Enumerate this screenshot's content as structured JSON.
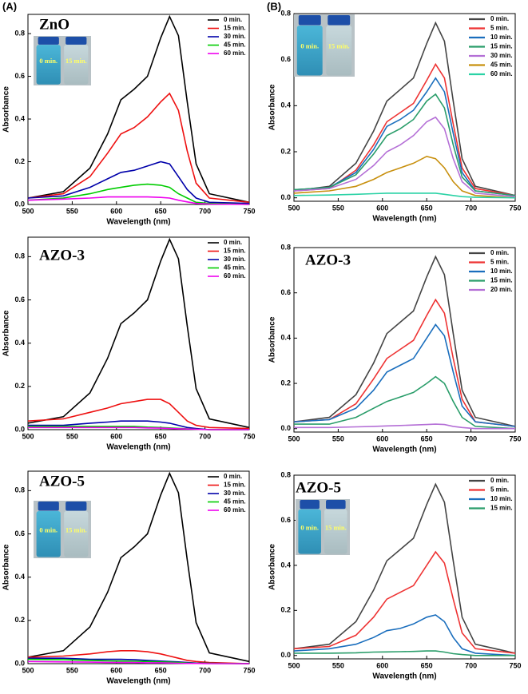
{
  "panel_labels": [
    "(A)",
    "(B)"
  ],
  "chart_data": [
    {
      "type": "line",
      "title": "ZnO",
      "x_label": "Wavelength (nm)",
      "y_label": "Absorbance",
      "inset_labels": [
        "0 min.",
        "15 min."
      ],
      "x": [
        500,
        540,
        570,
        590,
        605,
        620,
        635,
        650,
        660,
        670,
        680,
        690,
        705,
        750
      ],
      "xlim": [
        500,
        750
      ],
      "xticks": [
        500,
        550,
        600,
        650,
        700,
        750
      ],
      "ylim": [
        0,
        0.89
      ],
      "yticks": [
        {
          "value": 0,
          "label": "0.0"
        },
        0.2,
        0.4,
        0.6,
        0.8
      ],
      "series": [
        {
          "name": "0 min.",
          "color": "#000000",
          "values": [
            0.03,
            0.06,
            0.17,
            0.33,
            0.49,
            0.54,
            0.6,
            0.78,
            0.88,
            0.79,
            0.48,
            0.19,
            0.05,
            0.01
          ]
        },
        {
          "name": "15 min.",
          "color": "#ee1111",
          "values": [
            0.03,
            0.05,
            0.13,
            0.24,
            0.33,
            0.36,
            0.41,
            0.48,
            0.52,
            0.44,
            0.25,
            0.1,
            0.03,
            0.01
          ]
        },
        {
          "name": "30 min.",
          "color": "#0000aa",
          "values": [
            0.03,
            0.04,
            0.08,
            0.12,
            0.15,
            0.16,
            0.18,
            0.2,
            0.19,
            0.13,
            0.07,
            0.03,
            0.01,
            0.005
          ]
        },
        {
          "name": "45 min.",
          "color": "#00cc00",
          "values": [
            0.02,
            0.03,
            0.05,
            0.07,
            0.08,
            0.09,
            0.095,
            0.09,
            0.08,
            0.05,
            0.03,
            0.01,
            0.005,
            0
          ]
        },
        {
          "name": "60 min.",
          "color": "#ee00ee",
          "values": [
            0.02,
            0.025,
            0.03,
            0.035,
            0.035,
            0.035,
            0.035,
            0.033,
            0.03,
            0.02,
            0.012,
            0.005,
            0.002,
            0
          ]
        }
      ]
    },
    {
      "type": "line",
      "title": "ZnO",
      "x_label": "Wavelength (nm)",
      "y_label": "Absorbance",
      "inset_labels": [
        "0 min.",
        "15 min."
      ],
      "x": [
        500,
        540,
        570,
        590,
        605,
        620,
        635,
        650,
        660,
        670,
        680,
        690,
        705,
        750
      ],
      "xlim": [
        500,
        750
      ],
      "xticks": [
        500,
        550,
        600,
        650,
        700,
        750
      ],
      "ylim": [
        -0.015,
        0.8
      ],
      "yticks": [
        {
          "value": 0,
          "label": "0.0"
        },
        0.2,
        0.4,
        0.6,
        0.8
      ],
      "series": [
        {
          "name": "0 min.",
          "color": "#444444",
          "values": [
            0.03,
            0.05,
            0.15,
            0.29,
            0.42,
            0.47,
            0.52,
            0.67,
            0.76,
            0.68,
            0.42,
            0.17,
            0.05,
            0.01
          ]
        },
        {
          "name": "5 min.",
          "color": "#ee3333",
          "values": [
            0.03,
            0.04,
            0.12,
            0.23,
            0.33,
            0.37,
            0.41,
            0.51,
            0.58,
            0.52,
            0.32,
            0.13,
            0.04,
            0.01
          ]
        },
        {
          "name": "10 min.",
          "color": "#1a6ebd",
          "values": [
            0.035,
            0.045,
            0.11,
            0.21,
            0.31,
            0.34,
            0.38,
            0.46,
            0.52,
            0.46,
            0.28,
            0.11,
            0.03,
            0.01
          ]
        },
        {
          "name": "15 min.",
          "color": "#2a9d6a",
          "values": [
            0.035,
            0.045,
            0.1,
            0.19,
            0.27,
            0.3,
            0.34,
            0.42,
            0.45,
            0.39,
            0.23,
            0.09,
            0.03,
            0.01
          ]
        },
        {
          "name": "30 min.",
          "color": "#b46fd6",
          "values": [
            0.03,
            0.04,
            0.08,
            0.14,
            0.2,
            0.23,
            0.27,
            0.33,
            0.35,
            0.3,
            0.17,
            0.07,
            0.02,
            0.005
          ]
        },
        {
          "name": "45 min.",
          "color": "#c8900f",
          "values": [
            0.02,
            0.03,
            0.05,
            0.08,
            0.11,
            0.13,
            0.15,
            0.18,
            0.17,
            0.13,
            0.07,
            0.03,
            0.01,
            0
          ]
        },
        {
          "name": "60 min.",
          "color": "#2ad2a5",
          "values": [
            0.01,
            0.012,
            0.015,
            0.018,
            0.02,
            0.02,
            0.02,
            0.02,
            0.02,
            0.015,
            0.01,
            0.005,
            0.002,
            0
          ]
        }
      ]
    },
    {
      "type": "line",
      "title": "AZO-3",
      "x_label": "Wavelength (nm)",
      "y_label": "Absorbance",
      "x": [
        500,
        540,
        570,
        590,
        605,
        620,
        635,
        650,
        660,
        670,
        680,
        690,
        705,
        750
      ],
      "xlim": [
        500,
        750
      ],
      "xticks": [
        500,
        550,
        600,
        650,
        700,
        750
      ],
      "ylim": [
        0,
        0.89
      ],
      "yticks": [
        {
          "value": 0,
          "label": "0.0"
        },
        0.2,
        0.4,
        0.6,
        0.8
      ],
      "series": [
        {
          "name": "0 min.",
          "color": "#000000",
          "values": [
            0.03,
            0.06,
            0.17,
            0.33,
            0.49,
            0.54,
            0.6,
            0.78,
            0.88,
            0.79,
            0.48,
            0.19,
            0.05,
            0.01
          ]
        },
        {
          "name": "15 min.",
          "color": "#ee1111",
          "values": [
            0.04,
            0.05,
            0.08,
            0.1,
            0.12,
            0.13,
            0.14,
            0.14,
            0.12,
            0.08,
            0.04,
            0.02,
            0.01,
            0.005
          ]
        },
        {
          "name": "30 min.",
          "color": "#0000aa",
          "values": [
            0.02,
            0.02,
            0.03,
            0.035,
            0.04,
            0.04,
            0.04,
            0.035,
            0.03,
            0.02,
            0.01,
            0.005,
            0,
            0
          ]
        },
        {
          "name": "45 min.",
          "color": "#00cc00",
          "values": [
            0.015,
            0.015,
            0.015,
            0.015,
            0.015,
            0.015,
            0.012,
            0.01,
            0.008,
            0.006,
            0.004,
            0.002,
            0,
            0
          ]
        },
        {
          "name": "60 min.",
          "color": "#ee00ee",
          "values": [
            0.01,
            0.01,
            0.01,
            0.01,
            0.01,
            0.01,
            0.008,
            0.007,
            0.006,
            0.004,
            0.003,
            0.002,
            0,
            0
          ]
        }
      ]
    },
    {
      "type": "line",
      "title": "AZO-3",
      "x_label": "Wavelength (nm)",
      "y_label": "Absorbance",
      "x": [
        500,
        540,
        570,
        590,
        605,
        620,
        635,
        650,
        660,
        670,
        680,
        690,
        705,
        750
      ],
      "xlim": [
        500,
        750
      ],
      "xticks": [
        500,
        550,
        600,
        650,
        700,
        750
      ],
      "ylim": [
        -0.015,
        0.8
      ],
      "yticks": [
        {
          "value": 0,
          "label": "0.0"
        },
        0.2,
        0.4,
        0.6,
        0.8
      ],
      "series": [
        {
          "name": "0 min.",
          "color": "#444444",
          "values": [
            0.03,
            0.05,
            0.15,
            0.29,
            0.42,
            0.47,
            0.52,
            0.67,
            0.76,
            0.68,
            0.42,
            0.17,
            0.05,
            0.01
          ]
        },
        {
          "name": "5 min.",
          "color": "#ee3333",
          "values": [
            0.03,
            0.04,
            0.11,
            0.22,
            0.31,
            0.35,
            0.39,
            0.5,
            0.57,
            0.51,
            0.31,
            0.13,
            0.03,
            0.01
          ]
        },
        {
          "name": "10 min.",
          "color": "#1a6ebd",
          "values": [
            0.03,
            0.04,
            0.09,
            0.17,
            0.25,
            0.28,
            0.31,
            0.4,
            0.46,
            0.41,
            0.25,
            0.1,
            0.03,
            0.01
          ]
        },
        {
          "name": "15 min.",
          "color": "#2a9d6a",
          "values": [
            0.02,
            0.02,
            0.05,
            0.09,
            0.12,
            0.14,
            0.16,
            0.2,
            0.23,
            0.2,
            0.12,
            0.05,
            0.01,
            0
          ]
        },
        {
          "name": "20 min.",
          "color": "#b46fd6",
          "values": [
            0.005,
            0.005,
            0.008,
            0.01,
            0.012,
            0.014,
            0.016,
            0.018,
            0.02,
            0.018,
            0.01,
            0.005,
            0,
            0
          ]
        }
      ]
    },
    {
      "type": "line",
      "title": "AZO-5",
      "x_label": "Wavelength (nm)",
      "y_label": "Absorbance",
      "inset_labels": [
        "0 min.",
        "15 min."
      ],
      "x": [
        500,
        540,
        570,
        590,
        605,
        620,
        635,
        650,
        660,
        670,
        680,
        690,
        705,
        750
      ],
      "xlim": [
        500,
        750
      ],
      "xticks": [
        500,
        550,
        600,
        650,
        700,
        750
      ],
      "ylim": [
        0,
        0.89
      ],
      "yticks": [
        {
          "value": 0,
          "label": "0.0"
        },
        0.2,
        0.4,
        0.6,
        0.8
      ],
      "series": [
        {
          "name": "0 min.",
          "color": "#000000",
          "values": [
            0.03,
            0.06,
            0.17,
            0.33,
            0.49,
            0.54,
            0.6,
            0.78,
            0.88,
            0.79,
            0.48,
            0.19,
            0.05,
            0.01
          ]
        },
        {
          "name": "15 min.",
          "color": "#ee1111",
          "values": [
            0.03,
            0.035,
            0.045,
            0.055,
            0.06,
            0.06,
            0.055,
            0.045,
            0.035,
            0.025,
            0.015,
            0.01,
            0.005,
            0
          ]
        },
        {
          "name": "30 min.",
          "color": "#0000aa",
          "values": [
            0.025,
            0.025,
            0.02,
            0.02,
            0.02,
            0.018,
            0.015,
            0.012,
            0.01,
            0.008,
            0.005,
            0.003,
            0.002,
            0
          ]
        },
        {
          "name": "45 min.",
          "color": "#00cc00",
          "values": [
            0.02,
            0.018,
            0.015,
            0.013,
            0.012,
            0.011,
            0.01,
            0.008,
            0.007,
            0.005,
            0.003,
            0.002,
            0.001,
            0
          ]
        },
        {
          "name": "60 min.",
          "color": "#ee00ee",
          "values": [
            0.01,
            0.008,
            0.007,
            0.006,
            0.005,
            0.005,
            0.004,
            0.004,
            0.003,
            0.002,
            0.001,
            0.001,
            0,
            0
          ]
        }
      ]
    },
    {
      "type": "line",
      "title": "AZO-5",
      "x_label": "Wavelength (nm)",
      "y_label": "Absorbance",
      "inset_labels": [
        "0 min.",
        "15 min."
      ],
      "x": [
        500,
        540,
        570,
        590,
        605,
        620,
        635,
        650,
        660,
        670,
        680,
        690,
        705,
        750
      ],
      "xlim": [
        500,
        750
      ],
      "xticks": [
        500,
        550,
        600,
        650,
        700,
        750
      ],
      "ylim": [
        -0.015,
        0.8
      ],
      "yticks": [
        {
          "value": 0,
          "label": "0.0"
        },
        0.2,
        0.4,
        0.6,
        0.8
      ],
      "series": [
        {
          "name": "0 min.",
          "color": "#444444",
          "values": [
            0.03,
            0.05,
            0.15,
            0.29,
            0.42,
            0.47,
            0.52,
            0.67,
            0.76,
            0.68,
            0.42,
            0.17,
            0.05,
            0.01
          ]
        },
        {
          "name": "5 min.",
          "color": "#ee3333",
          "values": [
            0.03,
            0.04,
            0.09,
            0.17,
            0.25,
            0.28,
            0.31,
            0.4,
            0.46,
            0.41,
            0.25,
            0.1,
            0.03,
            0.01
          ]
        },
        {
          "name": "10 min.",
          "color": "#1a6ebd",
          "values": [
            0.02,
            0.03,
            0.05,
            0.08,
            0.11,
            0.12,
            0.14,
            0.17,
            0.18,
            0.15,
            0.08,
            0.03,
            0.01,
            0
          ]
        },
        {
          "name": "15 min.",
          "color": "#2a9d6a",
          "values": [
            0.01,
            0.01,
            0.012,
            0.015,
            0.016,
            0.017,
            0.018,
            0.02,
            0.02,
            0.015,
            0.008,
            0.004,
            0,
            0
          ]
        }
      ]
    }
  ]
}
